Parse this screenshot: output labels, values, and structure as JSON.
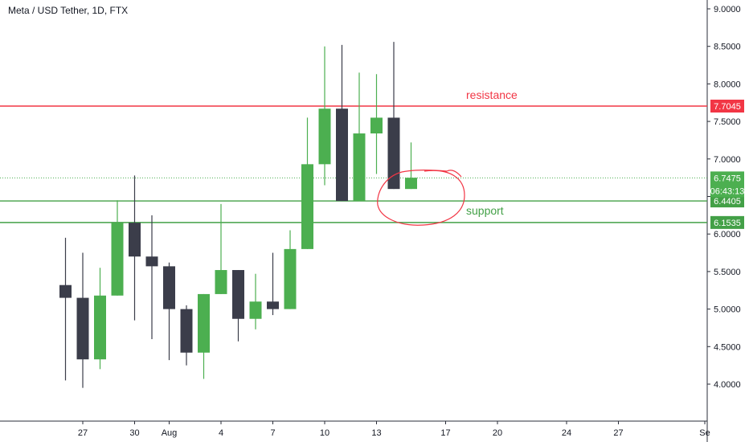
{
  "header": {
    "symbol_title": "Meta / USD Tether, 1D, FTX"
  },
  "colors": {
    "up": "#4caf50",
    "down": "#3b3d4a",
    "resistance": "#f23645",
    "support": "#43a047",
    "dotted": "#4caf50",
    "axis_text": "#131722",
    "axis_line": "#2a2e39"
  },
  "chart_data": {
    "type": "candlestick",
    "title": "Meta / USD Tether, 1D, FTX",
    "ylim": [
      3.5,
      9.1
    ],
    "y_ticks": [
      "9.0000",
      "8.5000",
      "8.0000",
      "7.5000",
      "7.0000",
      "6.5000",
      "6.0000",
      "5.5000",
      "5.0000",
      "4.5000",
      "4.0000"
    ],
    "x_ticks": [
      {
        "day": 0,
        "label": "27"
      },
      {
        "day": 3,
        "label": "30"
      },
      {
        "day": 5,
        "label": "Aug"
      },
      {
        "day": 8,
        "label": "4"
      },
      {
        "day": 11,
        "label": "7"
      },
      {
        "day": 14,
        "label": "10"
      },
      {
        "day": 17,
        "label": "13"
      },
      {
        "day": 21,
        "label": "17"
      },
      {
        "day": 24,
        "label": "20"
      },
      {
        "day": 28,
        "label": "24"
      },
      {
        "day": 31,
        "label": "27"
      },
      {
        "day": 36,
        "label": "Se"
      }
    ],
    "candles": [
      {
        "day": -1,
        "o": 5.32,
        "h": 5.95,
        "l": 4.05,
        "c": 5.15
      },
      {
        "day": 0,
        "o": 5.15,
        "h": 5.75,
        "l": 3.95,
        "c": 4.33
      },
      {
        "day": 1,
        "o": 4.33,
        "h": 5.55,
        "l": 4.2,
        "c": 5.18
      },
      {
        "day": 2,
        "o": 5.18,
        "h": 6.45,
        "l": 5.18,
        "c": 6.15
      },
      {
        "day": 3,
        "o": 6.15,
        "h": 6.78,
        "l": 4.85,
        "c": 5.7
      },
      {
        "day": 4,
        "o": 5.7,
        "h": 6.25,
        "l": 4.6,
        "c": 5.57
      },
      {
        "day": 5,
        "o": 5.57,
        "h": 5.62,
        "l": 4.32,
        "c": 5.0
      },
      {
        "day": 6,
        "o": 5.0,
        "h": 5.05,
        "l": 4.25,
        "c": 4.42
      },
      {
        "day": 7,
        "o": 4.42,
        "h": 5.2,
        "l": 4.07,
        "c": 5.2
      },
      {
        "day": 8,
        "o": 5.2,
        "h": 6.4,
        "l": 5.2,
        "c": 5.52
      },
      {
        "day": 9,
        "o": 5.52,
        "h": 5.52,
        "l": 4.57,
        "c": 4.87
      },
      {
        "day": 10,
        "o": 4.87,
        "h": 5.47,
        "l": 4.73,
        "c": 5.1
      },
      {
        "day": 11,
        "o": 5.1,
        "h": 5.75,
        "l": 4.92,
        "c": 5.0
      },
      {
        "day": 12,
        "o": 5.0,
        "h": 6.05,
        "l": 5.0,
        "c": 5.8
      },
      {
        "day": 13,
        "o": 5.8,
        "h": 7.55,
        "l": 5.8,
        "c": 6.93
      },
      {
        "day": 14,
        "o": 6.93,
        "h": 8.5,
        "l": 6.65,
        "c": 7.67
      },
      {
        "day": 15,
        "o": 7.67,
        "h": 8.52,
        "l": 6.44,
        "c": 6.44
      },
      {
        "day": 16,
        "o": 6.44,
        "h": 8.15,
        "l": 6.44,
        "c": 7.34
      },
      {
        "day": 17,
        "o": 7.34,
        "h": 8.13,
        "l": 6.8,
        "c": 7.55
      },
      {
        "day": 18,
        "o": 7.55,
        "h": 8.56,
        "l": 6.6,
        "c": 6.6
      },
      {
        "day": 19,
        "o": 6.6,
        "h": 7.22,
        "l": 6.6,
        "c": 6.75
      }
    ],
    "levels": [
      {
        "name": "resistance",
        "value": 7.7045,
        "label": "7.7045",
        "annotation": "resistance"
      },
      {
        "name": "support-upper",
        "value": 6.4405,
        "label": "6.4405",
        "annotation": "support"
      },
      {
        "name": "support-lower",
        "value": 6.1535,
        "label": "6.1535",
        "annotation": ""
      }
    ],
    "current_price": {
      "value": 6.7475,
      "label": "6.7475",
      "countdown": "06:43:13"
    }
  }
}
